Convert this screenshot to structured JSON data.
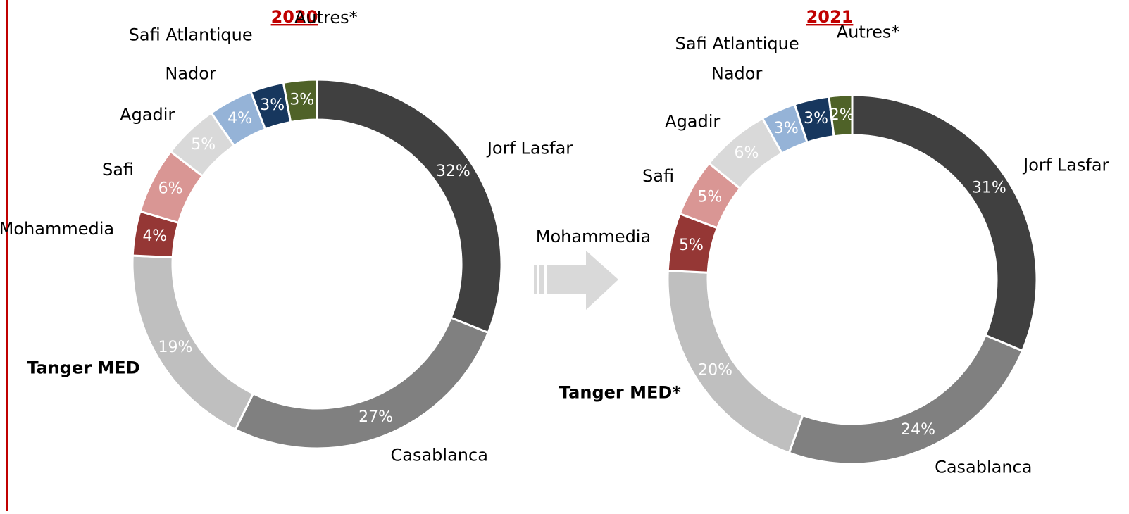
{
  "chart_data": [
    {
      "type": "pie",
      "title": "2020",
      "categories": [
        "Jorf Lasfar",
        "Casablanca",
        "Tanger MED",
        "Mohammedia",
        "Safi",
        "Agadir",
        "Nador",
        "Safi Atlantique",
        "Autres*"
      ],
      "values": [
        32,
        27,
        19,
        4,
        6,
        5,
        4,
        3,
        3
      ],
      "value_labels": [
        "32%",
        "27%",
        "19%",
        "4%",
        "6%",
        "5%",
        "4%",
        "3%",
        "3%"
      ],
      "colors": [
        "#404040",
        "#808080",
        "#bfbfbf",
        "#953735",
        "#d99694",
        "#d9d9d9",
        "#95b3d7",
        "#17375e",
        "#4f6228"
      ]
    },
    {
      "type": "pie",
      "title": "2021",
      "categories": [
        "Jorf Lasfar",
        "Casablanca",
        "Tanger MED*",
        "Mohammedia",
        "Safi",
        "Agadir",
        "Nador",
        "Safi Atlantique",
        "Autres*"
      ],
      "values": [
        31,
        24,
        20,
        5,
        5,
        6,
        3,
        3,
        2
      ],
      "value_labels": [
        "31%",
        "24%",
        "20%",
        "5%",
        "5%",
        "6%",
        "3%",
        "3%",
        "2%"
      ],
      "colors": [
        "#404040",
        "#808080",
        "#bfbfbf",
        "#953735",
        "#d99694",
        "#d9d9d9",
        "#95b3d7",
        "#17375e",
        "#4f6228"
      ]
    }
  ]
}
